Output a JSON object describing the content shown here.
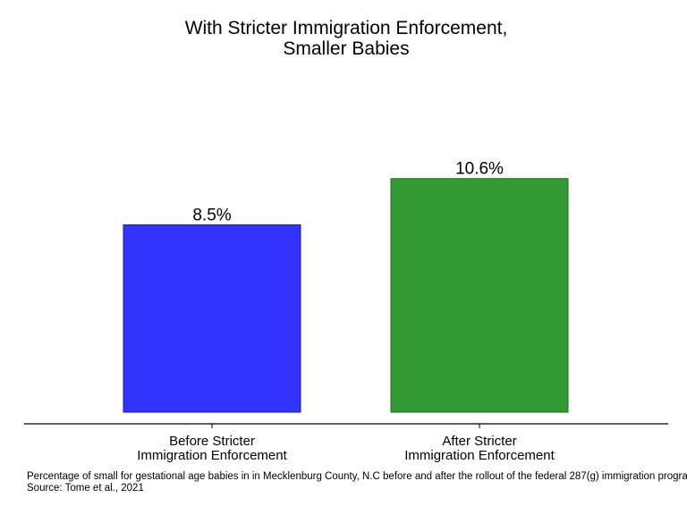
{
  "chart_data": {
    "type": "bar",
    "title_lines": [
      "With Stricter Immigration Enforcement,",
      "Smaller Babies"
    ],
    "categories": [
      [
        "Before Stricter",
        "Immigration Enforcement"
      ],
      [
        "After Stricter",
        "Immigration Enforcement"
      ]
    ],
    "values": [
      8.5,
      10.6
    ],
    "value_labels": [
      "8.5%",
      "10.6%"
    ],
    "colors": [
      "#3333ff",
      "#339933"
    ],
    "edge_colors": [
      "#1a1aa6",
      "#1f6f1f"
    ],
    "xlabel": "",
    "ylabel": "",
    "ylim": [
      0,
      12.05
    ],
    "y_axis_visible": false,
    "grid": false,
    "legend": "none"
  },
  "caption": {
    "note": "Percentage of small for gestational age babies in in Mecklenburg County, N.C before and after the rollout of the federal 287(g) immigration program.",
    "source": "Source: Tome et al., 2021"
  }
}
